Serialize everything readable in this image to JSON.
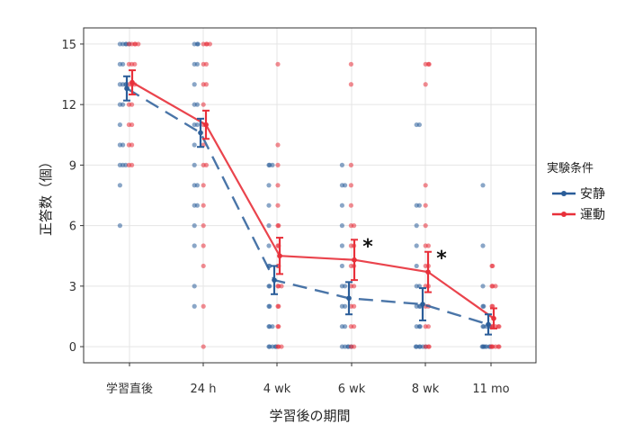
{
  "chart_data": {
    "type": "line",
    "title": "",
    "xlabel": "学習後の期間",
    "ylabel": "正答数（個）",
    "categories": [
      "学習直後",
      "24 h",
      "4 wk",
      "6 wk",
      "8 wk",
      "11 mo"
    ],
    "ylim": [
      -0.8,
      15.8
    ],
    "yticks": [
      "0",
      "3",
      "6",
      "9",
      "12",
      "15"
    ],
    "grid": true,
    "legend": {
      "title": "実験条件",
      "position": "right"
    },
    "series": [
      {
        "name": "安静",
        "color": "#2a5d99",
        "style": "dashed",
        "means": [
          12.8,
          10.6,
          3.3,
          2.4,
          2.1,
          1.1
        ],
        "error": [
          [
            12.2,
            13.4
          ],
          [
            9.9,
            11.3
          ],
          [
            2.6,
            4.0
          ],
          [
            1.6,
            3.2
          ],
          [
            1.3,
            2.9
          ],
          [
            0.6,
            1.6
          ]
        ],
        "points": [
          [
            15,
            15,
            15,
            15,
            15,
            14,
            14,
            13,
            13,
            13,
            13,
            12,
            12,
            11,
            10,
            10,
            9,
            9,
            9,
            8,
            6
          ],
          [
            15,
            15,
            15,
            14,
            14,
            13,
            12,
            12,
            11,
            11,
            10,
            9,
            8,
            8,
            7,
            7,
            6,
            5,
            3,
            2
          ],
          [
            9,
            9,
            9,
            8,
            7,
            6,
            5,
            4,
            4,
            3,
            3,
            2,
            2,
            1,
            1,
            1,
            0,
            0,
            0,
            0,
            0
          ],
          [
            9,
            8,
            8,
            7,
            6,
            5,
            4,
            3,
            3,
            2,
            2,
            1,
            1,
            0,
            0,
            0,
            0,
            0
          ],
          [
            11,
            11,
            7,
            7,
            6,
            5,
            4,
            3,
            3,
            2,
            2,
            2,
            1,
            1,
            1,
            0,
            0,
            0,
            0,
            0,
            0
          ],
          [
            8,
            5,
            3,
            2,
            2,
            1,
            1,
            1,
            1,
            1,
            0,
            0,
            0,
            0,
            0,
            0,
            0
          ]
        ]
      },
      {
        "name": "運動",
        "color": "#e8303a",
        "style": "solid",
        "means": [
          13.1,
          11.0,
          4.5,
          4.3,
          3.7,
          1.4
        ],
        "error": [
          [
            12.5,
            13.7
          ],
          [
            10.3,
            11.7
          ],
          [
            3.6,
            5.4
          ],
          [
            3.3,
            5.3
          ],
          [
            2.7,
            4.7
          ],
          [
            0.9,
            1.9
          ]
        ],
        "points": [
          [
            15,
            15,
            15,
            15,
            15,
            14,
            14,
            14,
            13,
            13,
            13,
            12,
            12,
            11,
            11,
            10,
            10,
            9,
            9
          ],
          [
            15,
            15,
            15,
            15,
            14,
            14,
            13,
            13,
            12,
            11,
            11,
            10,
            9,
            9,
            8,
            7,
            6,
            5,
            4,
            2,
            0
          ],
          [
            14,
            10,
            9,
            8,
            7,
            6,
            6,
            5,
            5,
            4,
            4,
            3,
            3,
            3,
            2,
            2,
            1,
            1,
            0,
            0,
            0
          ],
          [
            14,
            13,
            9,
            8,
            7,
            6,
            6,
            5,
            5,
            4,
            4,
            3,
            3,
            2,
            2,
            1,
            1,
            0,
            0
          ],
          [
            14,
            14,
            14,
            13,
            8,
            7,
            6,
            5,
            5,
            4,
            4,
            3,
            3,
            2,
            2,
            1,
            1,
            0,
            0,
            0
          ],
          [
            4,
            4,
            3,
            3,
            3,
            2,
            2,
            1,
            1,
            1,
            1,
            1,
            0,
            0,
            0,
            0,
            0,
            0
          ]
        ]
      }
    ],
    "annotations": [
      {
        "category_index": 3,
        "y": 5.1,
        "text": "*"
      },
      {
        "category_index": 4,
        "y": 4.5,
        "text": "*"
      }
    ]
  }
}
